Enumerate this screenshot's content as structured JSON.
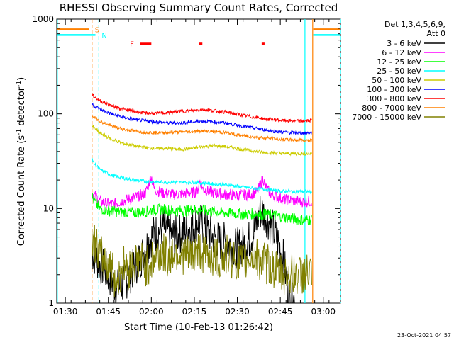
{
  "chart_data": {
    "type": "line",
    "title": "RHESSI Observing Summary Count Rates, Corrected",
    "xlabel": "Start Time (10-Feb-13 01:26:42)",
    "ylabel_main": "Corrected Count Rate (s",
    "ylabel_sup1": "-1",
    "ylabel_mid": " detector",
    "ylabel_sup2": "-1",
    "ylabel_end": ")",
    "xlim_minutes": [
      -3,
      96
    ],
    "x_ticks": [
      {
        "m": 0,
        "label": "01:30"
      },
      {
        "m": 15,
        "label": "01:45"
      },
      {
        "m": 30,
        "label": "02:00"
      },
      {
        "m": 45,
        "label": "02:15"
      },
      {
        "m": 60,
        "label": "02:30"
      },
      {
        "m": 75,
        "label": "02:45"
      },
      {
        "m": 90,
        "label": "03:00"
      }
    ],
    "y_scale": "log",
    "ylim": [
      1,
      1000
    ],
    "y_ticks": [
      {
        "v": 1,
        "label": "1"
      },
      {
        "v": 10,
        "label": "10"
      },
      {
        "v": 100,
        "label": "100"
      },
      {
        "v": 1000,
        "label": "1000"
      }
    ],
    "legend": {
      "header1": "Det 1,3,4,5,6,9,",
      "header2": "Att 0",
      "placement": "right"
    },
    "series": [
      {
        "name": "3 - 6 keV",
        "color": "#000000",
        "points": [
          [
            9.3,
            3.5
          ],
          [
            10,
            3.2
          ],
          [
            12,
            2.6
          ],
          [
            14,
            2.2
          ],
          [
            16,
            1.8
          ],
          [
            18,
            1.4
          ],
          [
            20,
            1.6
          ],
          [
            22,
            1.9
          ],
          [
            24,
            2.4
          ],
          [
            26,
            2.9
          ],
          [
            28,
            3.8
          ],
          [
            30,
            5.0
          ],
          [
            32,
            5.6
          ],
          [
            34,
            6.4
          ],
          [
            36,
            5.6
          ],
          [
            38,
            5.1
          ],
          [
            40,
            5.4
          ],
          [
            42,
            5.9
          ],
          [
            44,
            6.4
          ],
          [
            46,
            7.4
          ],
          [
            48,
            6.6
          ],
          [
            50,
            5.6
          ],
          [
            52,
            4.9
          ],
          [
            54,
            4.5
          ],
          [
            56,
            4.4
          ],
          [
            58,
            4.0
          ],
          [
            60,
            3.8
          ],
          [
            62,
            4.1
          ],
          [
            64,
            4.6
          ],
          [
            66,
            5.9
          ],
          [
            68,
            9.5
          ],
          [
            70,
            8.4
          ],
          [
            72,
            6.4
          ],
          [
            74,
            4.6
          ],
          [
            76,
            3.0
          ],
          [
            77.5,
            1.5
          ],
          [
            78.5,
            1.1
          ],
          [
            80,
            1.1
          ]
        ]
      },
      {
        "name": "6 - 12 keV",
        "color": "#ff00ff",
        "points": [
          [
            9.3,
            14.5
          ],
          [
            10,
            14
          ],
          [
            12,
            12
          ],
          [
            14,
            11.4
          ],
          [
            16,
            11
          ],
          [
            18,
            11.5
          ],
          [
            20,
            12
          ],
          [
            24,
            13
          ],
          [
            28,
            14.5
          ],
          [
            30,
            22
          ],
          [
            31,
            16
          ],
          [
            34,
            14.5
          ],
          [
            38,
            14
          ],
          [
            42,
            14.5
          ],
          [
            46,
            15
          ],
          [
            47,
            20
          ],
          [
            48,
            16
          ],
          [
            52,
            14.5
          ],
          [
            56,
            14
          ],
          [
            60,
            13.8
          ],
          [
            64,
            14
          ],
          [
            67,
            15
          ],
          [
            69,
            21
          ],
          [
            70,
            16.5
          ],
          [
            72,
            14
          ],
          [
            76,
            12.5
          ],
          [
            80,
            12
          ],
          [
            84,
            11.8
          ],
          [
            86,
            12
          ]
        ]
      },
      {
        "name": "12 - 25 keV",
        "color": "#00ff00",
        "points": [
          [
            9.3,
            13.5
          ],
          [
            10,
            12
          ],
          [
            12,
            10
          ],
          [
            16,
            9.4
          ],
          [
            20,
            9.2
          ],
          [
            24,
            9.1
          ],
          [
            28,
            9.2
          ],
          [
            30,
            9.6
          ],
          [
            34,
            9.8
          ],
          [
            38,
            9.4
          ],
          [
            42,
            9.5
          ],
          [
            46,
            9.8
          ],
          [
            50,
            9.4
          ],
          [
            54,
            9.1
          ],
          [
            58,
            8.9
          ],
          [
            62,
            8.7
          ],
          [
            66,
            8.8
          ],
          [
            70,
            8.7
          ],
          [
            74,
            8.3
          ],
          [
            78,
            7.9
          ],
          [
            82,
            7.6
          ],
          [
            86,
            7.6
          ]
        ]
      },
      {
        "name": "25 - 50 keV",
        "color": "#00ffff",
        "points": [
          [
            9.3,
            34
          ],
          [
            10,
            30
          ],
          [
            12,
            26
          ],
          [
            16,
            22.5
          ],
          [
            20,
            21
          ],
          [
            24,
            20
          ],
          [
            28,
            19.3
          ],
          [
            32,
            19.1
          ],
          [
            36,
            19
          ],
          [
            40,
            19
          ],
          [
            44,
            18.9
          ],
          [
            48,
            18.6
          ],
          [
            52,
            18.2
          ],
          [
            56,
            17.8
          ],
          [
            60,
            17.2
          ],
          [
            64,
            16.6
          ],
          [
            68,
            16.1
          ],
          [
            72,
            15.6
          ],
          [
            76,
            15.2
          ],
          [
            80,
            15.1
          ],
          [
            84,
            15.1
          ],
          [
            86,
            15.1
          ]
        ]
      },
      {
        "name": "50 - 100 keV",
        "color": "#cccc00",
        "points": [
          [
            9.3,
            75
          ],
          [
            10,
            71
          ],
          [
            12,
            63
          ],
          [
            16,
            54
          ],
          [
            20,
            49
          ],
          [
            24,
            46
          ],
          [
            28,
            44
          ],
          [
            32,
            43
          ],
          [
            36,
            43
          ],
          [
            40,
            42
          ],
          [
            44,
            43
          ],
          [
            48,
            45
          ],
          [
            52,
            46
          ],
          [
            56,
            45
          ],
          [
            60,
            43
          ],
          [
            64,
            41
          ],
          [
            68,
            39.5
          ],
          [
            72,
            38.8
          ],
          [
            76,
            38.2
          ],
          [
            80,
            38
          ],
          [
            84,
            38
          ],
          [
            86,
            38
          ]
        ]
      },
      {
        "name": "100 - 300 keV",
        "color": "#0000ff",
        "points": [
          [
            9.3,
            128
          ],
          [
            10,
            122
          ],
          [
            12,
            112
          ],
          [
            16,
            100
          ],
          [
            20,
            92
          ],
          [
            24,
            87
          ],
          [
            28,
            84
          ],
          [
            32,
            82
          ],
          [
            36,
            80
          ],
          [
            40,
            80
          ],
          [
            44,
            82
          ],
          [
            48,
            84
          ],
          [
            52,
            82
          ],
          [
            56,
            80
          ],
          [
            60,
            76
          ],
          [
            64,
            72
          ],
          [
            68,
            69
          ],
          [
            72,
            66
          ],
          [
            76,
            64
          ],
          [
            80,
            63
          ],
          [
            84,
            62.5
          ],
          [
            86,
            63
          ]
        ]
      },
      {
        "name": "300 - 800 keV",
        "color": "#ff0000",
        "points": [
          [
            9.3,
            162
          ],
          [
            10,
            152
          ],
          [
            12,
            138
          ],
          [
            16,
            122
          ],
          [
            20,
            112
          ],
          [
            24,
            106
          ],
          [
            28,
            102
          ],
          [
            32,
            101
          ],
          [
            36,
            103
          ],
          [
            40,
            106
          ],
          [
            44,
            108
          ],
          [
            48,
            111
          ],
          [
            52,
            108
          ],
          [
            56,
            104
          ],
          [
            60,
            99
          ],
          [
            64,
            94
          ],
          [
            68,
            90
          ],
          [
            72,
            87
          ],
          [
            76,
            85
          ],
          [
            80,
            84
          ],
          [
            84,
            84
          ],
          [
            86,
            86
          ]
        ]
      },
      {
        "name": "800 - 7000 keV",
        "color": "#ff8000",
        "points": [
          [
            9.3,
            96
          ],
          [
            10,
            92
          ],
          [
            12,
            84
          ],
          [
            16,
            74
          ],
          [
            20,
            69
          ],
          [
            24,
            66
          ],
          [
            28,
            64
          ],
          [
            32,
            63
          ],
          [
            36,
            63.5
          ],
          [
            40,
            64
          ],
          [
            44,
            65
          ],
          [
            48,
            66
          ],
          [
            52,
            65
          ],
          [
            56,
            63
          ],
          [
            60,
            60
          ],
          [
            64,
            58
          ],
          [
            68,
            56
          ],
          [
            72,
            55
          ],
          [
            76,
            53.5
          ],
          [
            80,
            53
          ],
          [
            84,
            52.5
          ],
          [
            86,
            53
          ]
        ]
      },
      {
        "name": "7000 - 15000 keV",
        "color": "#808000",
        "points": [
          [
            9.3,
            5.6
          ],
          [
            10,
            4.6
          ],
          [
            12,
            3.2
          ],
          [
            14,
            2.8
          ],
          [
            16,
            2.4
          ],
          [
            18,
            1.6
          ],
          [
            20,
            2.6
          ],
          [
            22,
            2.2
          ],
          [
            24,
            2.6
          ],
          [
            26,
            3.0
          ],
          [
            28,
            2.4
          ],
          [
            30,
            2.8
          ],
          [
            32,
            3.2
          ],
          [
            34,
            3.4
          ],
          [
            36,
            3.0
          ],
          [
            38,
            3.6
          ],
          [
            40,
            3.4
          ],
          [
            42,
            3.2
          ],
          [
            44,
            3.0
          ],
          [
            46,
            3.6
          ],
          [
            48,
            3.4
          ],
          [
            50,
            3.2
          ],
          [
            52,
            3.0
          ],
          [
            54,
            2.8
          ],
          [
            56,
            3.2
          ],
          [
            58,
            3.0
          ],
          [
            60,
            2.8
          ],
          [
            62,
            2.6
          ],
          [
            64,
            3.0
          ],
          [
            66,
            3.2
          ],
          [
            68,
            2.8
          ],
          [
            70,
            2.6
          ],
          [
            72,
            2.4
          ],
          [
            74,
            2.2
          ],
          [
            76,
            2.0
          ],
          [
            78,
            2.0
          ],
          [
            80,
            2.0
          ],
          [
            84,
            2.0
          ],
          [
            86,
            2.0
          ]
        ]
      }
    ],
    "annotations": [
      {
        "label": "S",
        "color": "#ff8000",
        "m": 9.3
      },
      {
        "label": "N",
        "color": "#00ffff",
        "m": 11.7
      },
      {
        "label": "F",
        "color": "#ff0000"
      }
    ],
    "flare_bars": [
      [
        26,
        30
      ],
      [
        46.5,
        47.8
      ],
      [
        68.5,
        69.5
      ]
    ],
    "flare_bar_level": 550,
    "saa_level": 780,
    "night_level": 680,
    "orange_segments": [
      [
        -3,
        8.2
      ],
      [
        86.5,
        96
      ]
    ],
    "cyan_segments": [
      [
        -3,
        10.5
      ],
      [
        86.5,
        96
      ]
    ],
    "vertical_markers": [
      {
        "m": -2.8,
        "color": "#00ffff",
        "dash": false
      },
      {
        "m": 9.3,
        "color": "#ff8000",
        "dash": true
      },
      {
        "m": 11.7,
        "color": "#00ffff",
        "dash": true
      },
      {
        "m": 83.6,
        "color": "#00ffff",
        "dash": false
      },
      {
        "m": 86.3,
        "color": "#ff8000",
        "dash": false
      },
      {
        "m": 96,
        "color": "#00ffff",
        "dash": true
      }
    ]
  },
  "footer": {
    "timestamp": "23-Oct-2021 04:57"
  }
}
